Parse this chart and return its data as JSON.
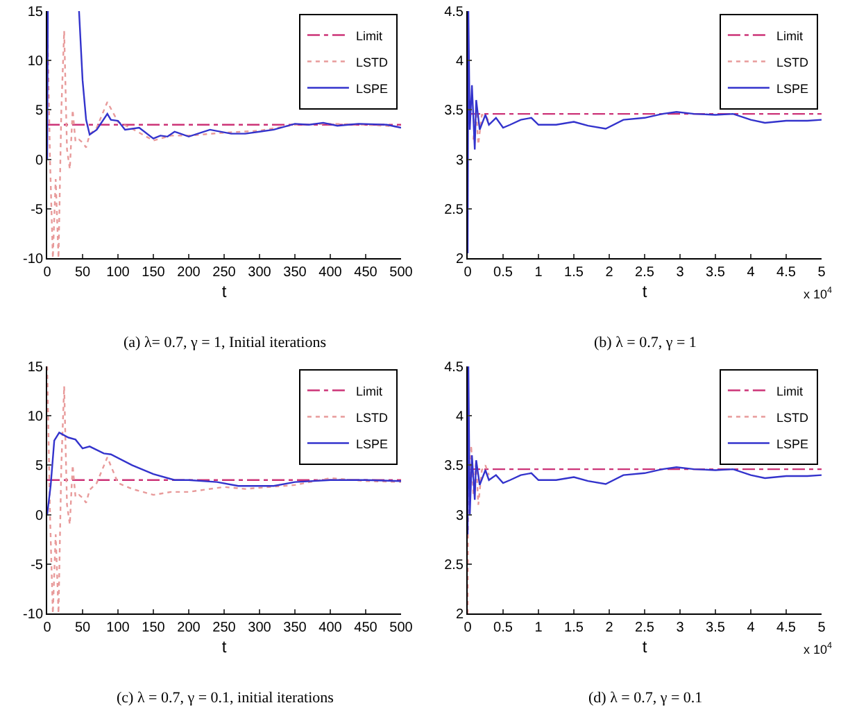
{
  "chart_data": [
    {
      "type": "line",
      "title": "(a) λ= 0.7, γ = 1, Initial iterations",
      "xlabel": "t",
      "xlim": [
        0,
        500
      ],
      "xticks": [
        0,
        50,
        100,
        150,
        200,
        250,
        300,
        350,
        400,
        450,
        500
      ],
      "ylim": [
        -10,
        15
      ],
      "yticks": [
        -10,
        -5,
        0,
        5,
        10,
        15
      ],
      "legend": "top right",
      "grid": false,
      "series": [
        {
          "name": "Limit",
          "color": "#cc3377",
          "line_style": "dashed",
          "x": [
            0,
            500
          ],
          "values": [
            3.5,
            3.5
          ]
        },
        {
          "name": "LSTD",
          "color": "#e89a9a",
          "line_style": "dotted",
          "x": [
            0,
            4,
            8,
            12,
            16,
            20,
            24,
            28,
            32,
            36,
            40,
            45,
            50,
            55,
            60,
            70,
            85,
            100,
            120,
            150,
            175,
            200,
            250,
            300,
            350,
            400,
            450,
            500
          ],
          "values": [
            15,
            0,
            -10,
            -2,
            -10,
            5,
            13,
            1,
            -1,
            5,
            1.8,
            2,
            1.7,
            1.2,
            2.5,
            3.2,
            5.8,
            3.8,
            3.1,
            1.9,
            2.4,
            2.4,
            2.7,
            2.9,
            3.5,
            3.6,
            3.5,
            3.3
          ]
        },
        {
          "name": "LSPE",
          "color": "#3333cc",
          "line_style": "solid",
          "x": [
            0,
            1,
            2,
            45,
            50,
            55,
            60,
            70,
            85,
            90,
            100,
            110,
            130,
            150,
            160,
            170,
            180,
            200,
            230,
            260,
            280,
            300,
            320,
            350,
            370,
            390,
            410,
            440,
            480,
            500
          ],
          "values": [
            0,
            15,
            null,
            15,
            8,
            4,
            2.5,
            3,
            4.6,
            4,
            3.9,
            3,
            3.2,
            2.1,
            2.4,
            2.3,
            2.8,
            2.3,
            3,
            2.6,
            2.6,
            2.8,
            3,
            3.6,
            3.5,
            3.7,
            3.4,
            3.6,
            3.5,
            3.2
          ]
        }
      ]
    },
    {
      "type": "line",
      "title": "(b) λ = 0.7, γ = 1",
      "xlabel": "t",
      "annotations": [
        "x 10$^{4}$"
      ],
      "xlim": [
        0,
        5
      ],
      "xticks": [
        0,
        0.5,
        1,
        1.5,
        2,
        2.5,
        3,
        3.5,
        4,
        4.5,
        5
      ],
      "ylim": [
        2,
        4.5
      ],
      "yticks": [
        2,
        2.5,
        3,
        3.5,
        4,
        4.5
      ],
      "legend": "top right",
      "grid": false,
      "series": [
        {
          "name": "Limit",
          "color": "#cc3377",
          "line_style": "dashed",
          "x": [
            0,
            5
          ],
          "values": [
            3.46,
            3.46
          ]
        },
        {
          "name": "LSTD",
          "color": "#e89a9a",
          "line_style": "dotted",
          "x": [
            0.08,
            0.12,
            0.15,
            0.2,
            0.25,
            0.3
          ],
          "values": [
            3.2,
            3.5,
            3.15,
            3.45,
            3.45,
            3.38
          ]
        },
        {
          "name": "LSPE",
          "color": "#3333cc",
          "line_style": "solid",
          "x": [
            0,
            0.01,
            0.03,
            0.06,
            0.1,
            0.12,
            0.17,
            0.25,
            0.3,
            0.4,
            0.5,
            0.6,
            0.75,
            0.9,
            1,
            1.25,
            1.5,
            1.7,
            1.95,
            2.2,
            2.5,
            2.75,
            2.95,
            3.2,
            3.5,
            3.75,
            4,
            4.2,
            4.5,
            4.8,
            5
          ],
          "values": [
            2.05,
            4.5,
            3.3,
            3.75,
            3.1,
            3.6,
            3.3,
            3.45,
            3.35,
            3.42,
            3.32,
            3.35,
            3.4,
            3.42,
            3.35,
            3.35,
            3.38,
            3.34,
            3.31,
            3.4,
            3.42,
            3.46,
            3.48,
            3.46,
            3.45,
            3.46,
            3.4,
            3.37,
            3.39,
            3.39,
            3.4
          ]
        }
      ]
    },
    {
      "type": "line",
      "title": "(c) λ = 0.7, γ = 0.1, initial iterations",
      "xlabel": "t",
      "xlim": [
        0,
        500
      ],
      "xticks": [
        0,
        50,
        100,
        150,
        200,
        250,
        300,
        350,
        400,
        450,
        500
      ],
      "ylim": [
        -10,
        15
      ],
      "yticks": [
        -10,
        -5,
        0,
        5,
        10,
        15
      ],
      "legend": "top right",
      "grid": false,
      "series": [
        {
          "name": "Limit",
          "color": "#cc3377",
          "line_style": "dashed",
          "x": [
            0,
            500
          ],
          "values": [
            3.5,
            3.5
          ]
        },
        {
          "name": "LSTD",
          "color": "#e89a9a",
          "line_style": "dotted",
          "x": [
            0,
            4,
            8,
            12,
            16,
            20,
            24,
            28,
            32,
            36,
            40,
            45,
            50,
            55,
            60,
            70,
            85,
            100,
            120,
            150,
            175,
            200,
            250,
            280,
            350,
            400,
            450,
            500
          ],
          "values": [
            15,
            0,
            -10,
            -2,
            -10,
            5,
            13,
            1,
            -1,
            5,
            1.8,
            2,
            1.7,
            1.2,
            2.5,
            3.2,
            5.8,
            3.2,
            2.6,
            2,
            2.3,
            2.3,
            2.8,
            2.6,
            3,
            3.7,
            3.4,
            3.3
          ]
        },
        {
          "name": "LSPE",
          "color": "#3333cc",
          "line_style": "solid",
          "x": [
            0,
            5,
            10,
            17,
            30,
            40,
            50,
            60,
            80,
            90,
            120,
            150,
            180,
            200,
            240,
            270,
            320,
            350,
            400,
            450,
            500
          ],
          "values": [
            0,
            3,
            7.5,
            8.3,
            7.8,
            7.6,
            6.7,
            6.9,
            6.2,
            6.1,
            5,
            4.1,
            3.5,
            3.5,
            3.3,
            2.9,
            2.9,
            3.3,
            3.5,
            3.5,
            3.4
          ]
        }
      ]
    },
    {
      "type": "line",
      "title": "(d) λ = 0.7, γ = 0.1",
      "xlabel": "t",
      "annotations": [
        "x 10$^{4}$"
      ],
      "xlim": [
        0,
        5
      ],
      "xticks": [
        0,
        0.5,
        1,
        1.5,
        2,
        2.5,
        3,
        3.5,
        4,
        4.5,
        5
      ],
      "ylim": [
        2,
        4.5
      ],
      "yticks": [
        2,
        2.5,
        3,
        3.5,
        4,
        4.5
      ],
      "legend": "top right",
      "grid": false,
      "series": [
        {
          "name": "Limit",
          "color": "#cc3377",
          "line_style": "dashed",
          "x": [
            0,
            5
          ],
          "values": [
            3.46,
            3.46
          ]
        },
        {
          "name": "LSTD",
          "color": "#e89a9a",
          "line_style": "dotted",
          "x": [
            0,
            0.01,
            0.03,
            0.05,
            0.08,
            0.12,
            0.15,
            0.2,
            0.25,
            0.3
          ],
          "values": [
            2.0,
            3.7,
            3.3,
            3.7,
            3.2,
            3.55,
            3.1,
            3.45,
            3.5,
            3.4
          ]
        },
        {
          "name": "LSPE",
          "color": "#3333cc",
          "line_style": "solid",
          "x": [
            0,
            0.01,
            0.03,
            0.06,
            0.1,
            0.12,
            0.17,
            0.25,
            0.3,
            0.4,
            0.5,
            0.6,
            0.75,
            0.9,
            1,
            1.25,
            1.5,
            1.7,
            1.95,
            2.2,
            2.5,
            2.75,
            2.95,
            3.2,
            3.5,
            3.75,
            4,
            4.2,
            4.5,
            4.8,
            5
          ],
          "values": [
            2.8,
            4.5,
            3.0,
            3.6,
            3.15,
            3.55,
            3.3,
            3.45,
            3.35,
            3.4,
            3.32,
            3.35,
            3.4,
            3.42,
            3.35,
            3.35,
            3.38,
            3.34,
            3.31,
            3.4,
            3.42,
            3.46,
            3.48,
            3.46,
            3.45,
            3.46,
            3.4,
            3.37,
            3.39,
            3.39,
            3.4
          ]
        }
      ]
    }
  ]
}
